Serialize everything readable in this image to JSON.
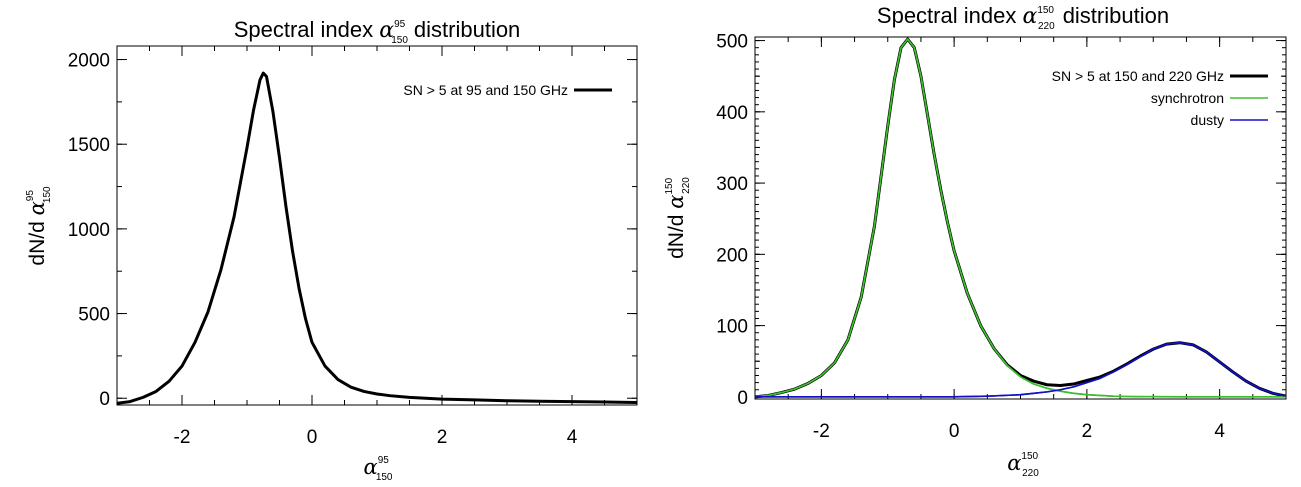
{
  "chart_data": [
    {
      "type": "line",
      "title_prefix": "Spectral index",
      "title_symbol": "α",
      "title_sup": "95",
      "title_sub": "150",
      "title_suffix": "distribution",
      "xlabel_symbol": "α",
      "xlabel_sup": "95",
      "xlabel_sub": "150",
      "ylabel_prefix": "dN/d",
      "ylabel_symbol": "α",
      "ylabel_sup": "95",
      "ylabel_sub": "150",
      "xlim": [
        -3,
        5
      ],
      "ylim": [
        -40,
        2080
      ],
      "xticks": [
        -2,
        0,
        2,
        4
      ],
      "xtick_labels": [
        "-2",
        "0",
        "2",
        "4"
      ],
      "yticks": [
        0,
        500,
        1000,
        1500,
        2000
      ],
      "ytick_labels": [
        "0",
        "500",
        "1000",
        "1500",
        "2000"
      ],
      "legend_position": "top-right",
      "series": [
        {
          "name": "SN > 5 at 95 and 150 GHz",
          "color": "#000000",
          "x": [
            -3.0,
            -2.8,
            -2.6,
            -2.4,
            -2.2,
            -2.0,
            -1.8,
            -1.6,
            -1.4,
            -1.2,
            -1.0,
            -0.9,
            -0.8,
            -0.75,
            -0.7,
            -0.6,
            -0.5,
            -0.4,
            -0.3,
            -0.2,
            -0.1,
            0.0,
            0.2,
            0.4,
            0.6,
            0.8,
            1.0,
            1.2,
            1.5,
            2.0,
            2.5,
            3.0,
            3.5,
            4.0,
            4.5,
            5.0
          ],
          "y": [
            -30,
            -20,
            5,
            40,
            100,
            190,
            330,
            510,
            760,
            1070,
            1480,
            1700,
            1880,
            1920,
            1900,
            1690,
            1420,
            1130,
            870,
            650,
            470,
            330,
            190,
            110,
            65,
            40,
            25,
            15,
            5,
            -5,
            -10,
            -15,
            -18,
            -20,
            -22,
            -25
          ]
        }
      ]
    },
    {
      "type": "line",
      "title_prefix": "Spectral index",
      "title_symbol": "α",
      "title_sup": "150",
      "title_sub": "220",
      "title_suffix": "distribution",
      "xlabel_symbol": "α",
      "xlabel_sup": "150",
      "xlabel_sub": "220",
      "ylabel_prefix": "dN/d",
      "ylabel_symbol": "α",
      "ylabel_sup": "150",
      "ylabel_sub": "220",
      "xlim": [
        -3,
        5
      ],
      "ylim": [
        -3,
        505
      ],
      "xticks": [
        -2,
        0,
        2,
        4
      ],
      "xtick_labels": [
        "-2",
        "0",
        "2",
        "4"
      ],
      "yticks": [
        0,
        100,
        200,
        300,
        400,
        500
      ],
      "ytick_labels": [
        "0",
        "100",
        "200",
        "300",
        "400",
        "500"
      ],
      "legend_position": "top-right",
      "series": [
        {
          "name": "SN > 5 at 150 and 220 GHz",
          "color": "#000000",
          "x": [
            -3.0,
            -2.8,
            -2.6,
            -2.4,
            -2.2,
            -2.0,
            -1.8,
            -1.6,
            -1.4,
            -1.2,
            -1.0,
            -0.9,
            -0.8,
            -0.7,
            -0.6,
            -0.5,
            -0.4,
            -0.3,
            -0.2,
            -0.1,
            0.0,
            0.2,
            0.4,
            0.6,
            0.8,
            1.0,
            1.2,
            1.4,
            1.6,
            1.8,
            2.0,
            2.2,
            2.4,
            2.6,
            2.8,
            3.0,
            3.2,
            3.4,
            3.6,
            3.8,
            4.0,
            4.2,
            4.4,
            4.6,
            4.8,
            5.0
          ],
          "y": [
            0,
            2,
            6,
            11,
            19,
            30,
            48,
            80,
            140,
            240,
            380,
            445,
            490,
            502,
            490,
            450,
            395,
            340,
            290,
            245,
            205,
            145,
            100,
            68,
            45,
            30,
            22,
            17,
            16,
            18,
            23,
            28,
            36,
            46,
            57,
            67,
            74,
            76,
            73,
            63,
            49,
            35,
            22,
            12,
            5,
            1
          ]
        },
        {
          "name": "synchrotron",
          "color": "#3cbf2c",
          "x": [
            -3.0,
            -2.8,
            -2.6,
            -2.4,
            -2.2,
            -2.0,
            -1.8,
            -1.6,
            -1.4,
            -1.2,
            -1.0,
            -0.9,
            -0.8,
            -0.7,
            -0.6,
            -0.5,
            -0.4,
            -0.3,
            -0.2,
            -0.1,
            0.0,
            0.2,
            0.4,
            0.6,
            0.8,
            1.0,
            1.2,
            1.4,
            1.6,
            1.8,
            2.0,
            2.2,
            2.4,
            2.6,
            2.8,
            3.0,
            3.5,
            4.0,
            4.5,
            5.0
          ],
          "y": [
            0,
            2,
            6,
            11,
            19,
            30,
            48,
            80,
            140,
            240,
            380,
            445,
            490,
            502,
            490,
            450,
            395,
            340,
            290,
            245,
            205,
            145,
            100,
            68,
            44,
            28,
            18,
            12,
            8,
            5,
            3,
            2,
            1,
            0.5,
            0.3,
            0.2,
            0,
            0,
            0,
            0
          ]
        },
        {
          "name": "dusty",
          "color": "#1010c8",
          "x": [
            -3.0,
            -2.0,
            -1.0,
            0.0,
            0.5,
            1.0,
            1.2,
            1.4,
            1.6,
            1.8,
            2.0,
            2.2,
            2.4,
            2.6,
            2.8,
            3.0,
            3.2,
            3.4,
            3.6,
            3.8,
            4.0,
            4.2,
            4.4,
            4.6,
            4.8,
            5.0
          ],
          "y": [
            0,
            0,
            0,
            0,
            1,
            3,
            5,
            7,
            10,
            14,
            20,
            26,
            35,
            45,
            56,
            67,
            74,
            76,
            73,
            63,
            49,
            35,
            22,
            12,
            5,
            1
          ]
        }
      ]
    }
  ]
}
